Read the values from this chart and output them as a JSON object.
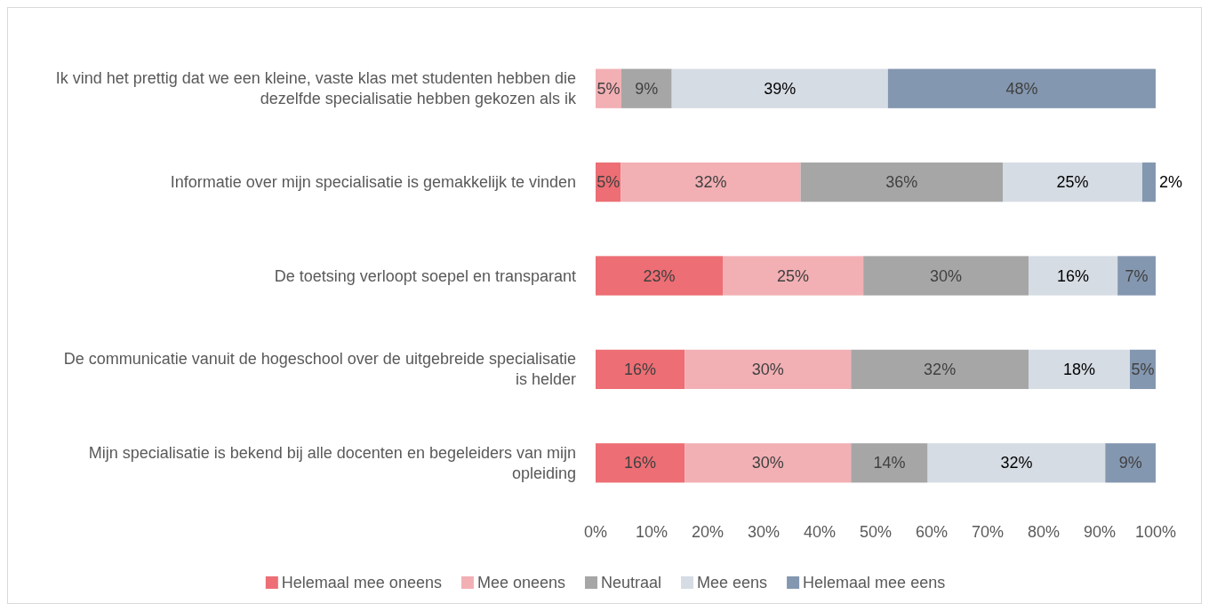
{
  "chart_data": {
    "type": "bar",
    "orientation": "horizontal",
    "stacked": true,
    "categories": [
      "Ik vind het prettig dat we een kleine, vaste klas met studenten hebben die dezelfde specialisatie hebben gekozen als ik",
      "Informatie over mijn specialisatie is gemakkelijk te vinden",
      "De toetsing verloopt soepel en transparant",
      "De communicatie vanuit de hogeschool over de uitgebreide specialisatie is helder",
      "Mijn specialisatie is bekend bij alle docenten en begeleiders van mijn opleiding"
    ],
    "series": [
      {
        "name": "Helemaal mee oneens",
        "color": "#ed6e74",
        "values": [
          0,
          4.5,
          22.7,
          15.9,
          15.9
        ],
        "value_labels": [
          null,
          "5%",
          "23%",
          "16%",
          "16%"
        ]
      },
      {
        "name": "Mee oneens",
        "color": "#f2b0b4",
        "values": [
          4.6,
          32.1,
          25.1,
          29.7,
          29.7
        ],
        "value_labels": [
          "5%",
          "32%",
          "25%",
          "30%",
          "30%"
        ]
      },
      {
        "name": "Neutraal",
        "color": "#a6a6a6",
        "values": [
          9.0,
          36.1,
          29.5,
          31.7,
          13.7
        ],
        "value_labels": [
          "9%",
          "36%",
          "30%",
          "32%",
          "14%"
        ]
      },
      {
        "name": "Mee eens",
        "color": "#d6dce4",
        "values": [
          38.6,
          24.9,
          15.9,
          18.1,
          31.7
        ],
        "value_labels": [
          "39%",
          "25%",
          "16%",
          "18%",
          "32%"
        ]
      },
      {
        "name": "Helemaal mee eens",
        "color": "#8497b0",
        "values": [
          47.8,
          2.4,
          6.8,
          4.6,
          9.0
        ],
        "value_labels": [
          "48%",
          "2%",
          "7%",
          "5%",
          "9%"
        ]
      }
    ],
    "xlim": [
      0,
      100
    ],
    "xticks": [
      {
        "value": 0,
        "label": "0%"
      },
      {
        "value": 10,
        "label": "10%"
      },
      {
        "value": 20,
        "label": "20%"
      },
      {
        "value": 30,
        "label": "30%"
      },
      {
        "value": 40,
        "label": "40%"
      },
      {
        "value": 50,
        "label": "50%"
      },
      {
        "value": 60,
        "label": "60%"
      },
      {
        "value": 70,
        "label": "70%"
      },
      {
        "value": 80,
        "label": "80%"
      },
      {
        "value": 90,
        "label": "90%"
      },
      {
        "value": 100,
        "label": "100%"
      }
    ],
    "grid": false,
    "legend": "bottom"
  }
}
